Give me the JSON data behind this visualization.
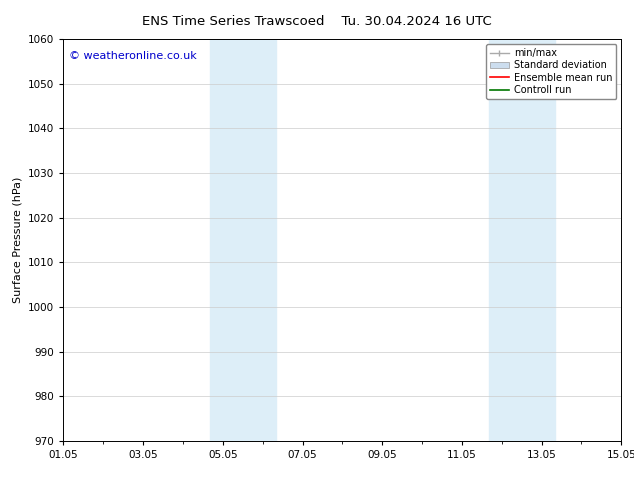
{
  "title_left": "ENS Time Series Trawscoed",
  "title_right": "Tu. 30.04.2024 16 UTC",
  "ylabel": "Surface Pressure (hPa)",
  "ylim": [
    970,
    1060
  ],
  "yticks": [
    970,
    980,
    990,
    1000,
    1010,
    1020,
    1030,
    1040,
    1050,
    1060
  ],
  "xtick_labels": [
    "01.05",
    "03.05",
    "05.05",
    "07.05",
    "09.05",
    "11.05",
    "13.05",
    "15.05"
  ],
  "xtick_positions_days": [
    0,
    2,
    4,
    6,
    8,
    10,
    12,
    14
  ],
  "xlim": [
    0,
    14
  ],
  "shaded_bands": [
    {
      "x_start_days": 3.67,
      "x_end_days": 5.33
    },
    {
      "x_start_days": 10.67,
      "x_end_days": 12.33
    }
  ],
  "shade_color": "#ddeef8",
  "copyright_text": "© weatheronline.co.uk",
  "copyright_color": "#0000cc",
  "background_color": "#ffffff",
  "legend_items": [
    {
      "label": "min/max",
      "color": "#aaaaaa",
      "lw": 1.0,
      "ls": "-"
    },
    {
      "label": "Standard deviation",
      "color": "#ccddee",
      "lw": 6,
      "ls": "-"
    },
    {
      "label": "Ensemble mean run",
      "color": "#ff0000",
      "lw": 1.2,
      "ls": "-"
    },
    {
      "label": "Controll run",
      "color": "#007700",
      "lw": 1.2,
      "ls": "-"
    }
  ],
  "fig_width": 6.34,
  "fig_height": 4.9,
  "dpi": 100,
  "title_fontsize": 9.5,
  "axis_fontsize": 8,
  "tick_fontsize": 7.5,
  "copyright_fontsize": 8
}
